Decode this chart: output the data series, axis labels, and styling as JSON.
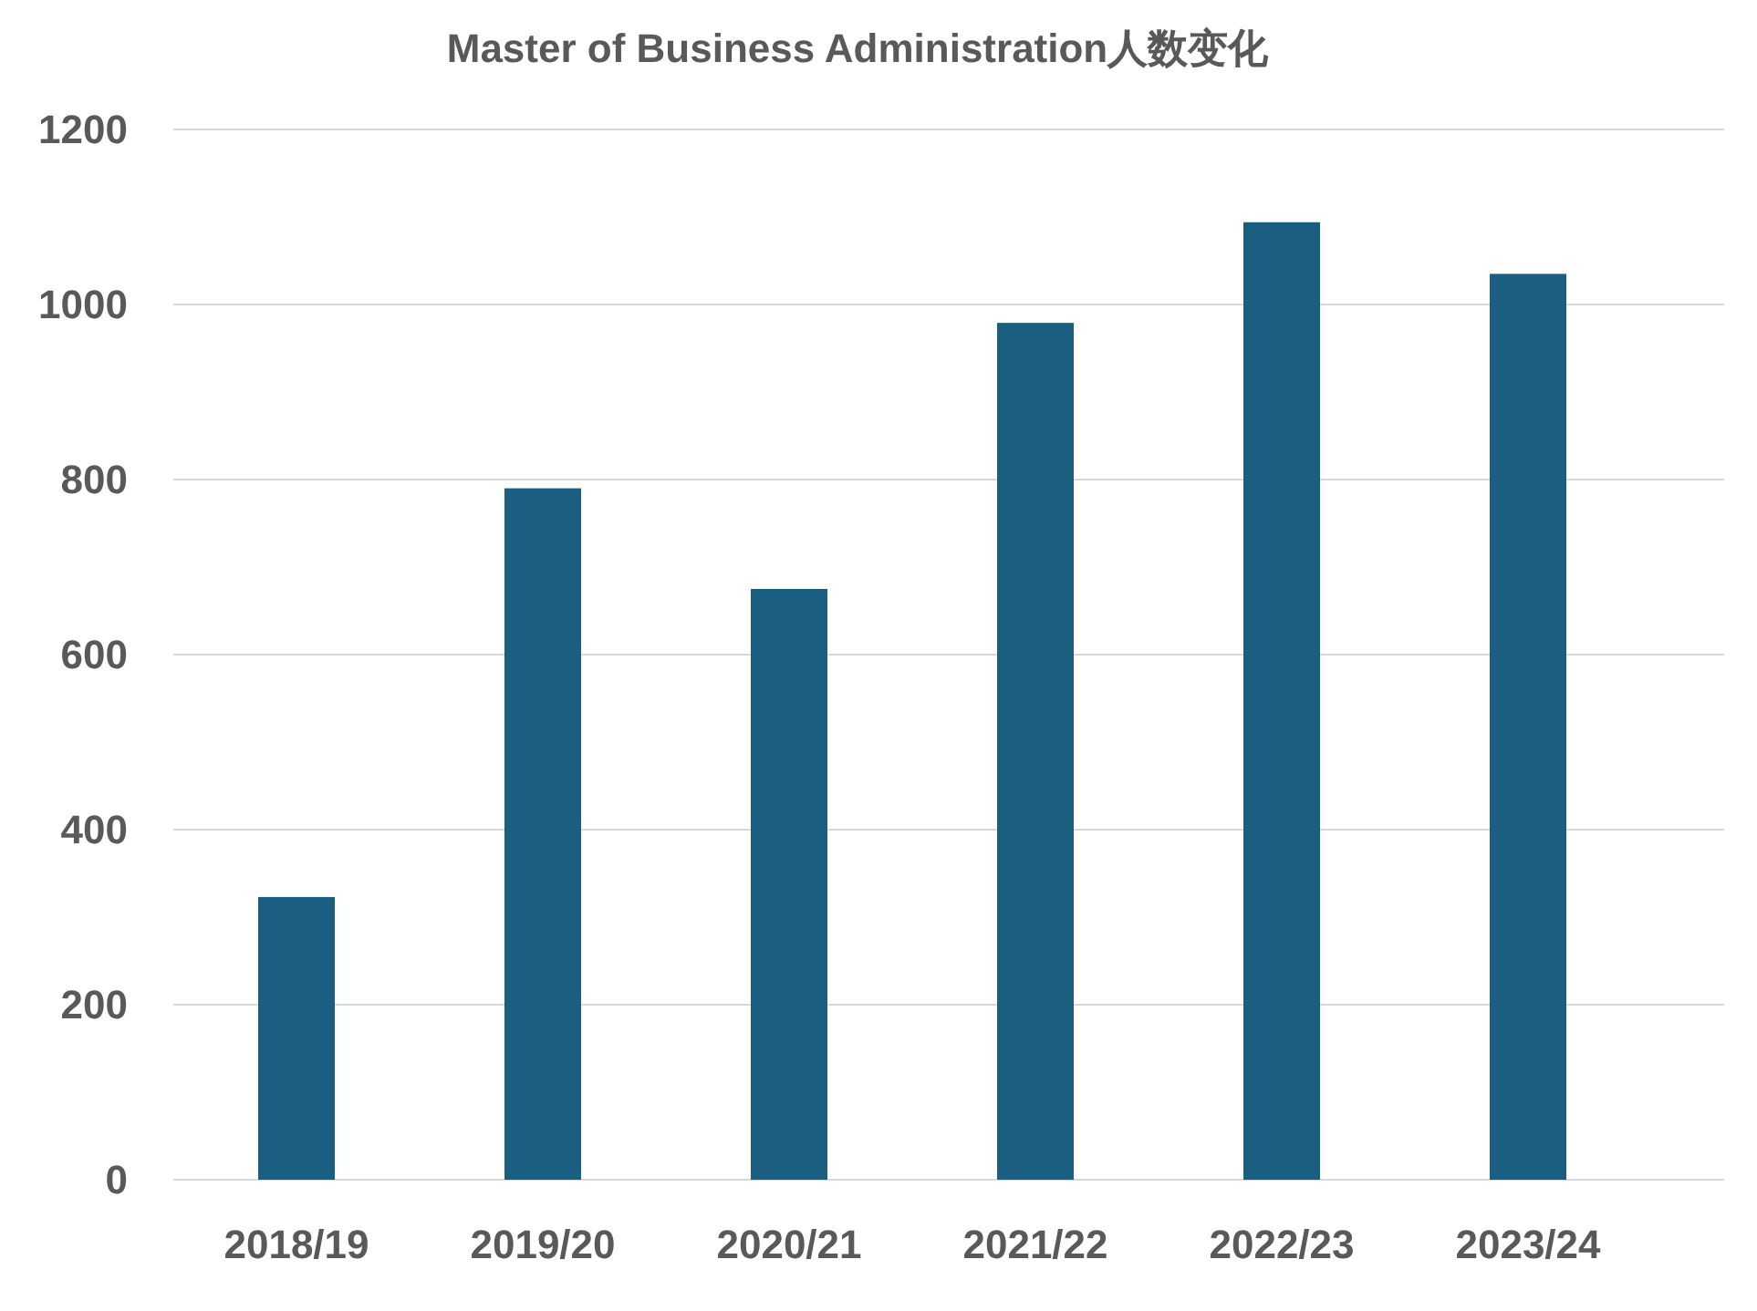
{
  "chart_data": {
    "type": "bar",
    "title": "Master of Business Administration人数变化",
    "categories": [
      "2018/19",
      "2019/20",
      "2020/21",
      "2021/22",
      "2022/23",
      "2023/24"
    ],
    "values": [
      323,
      790,
      675,
      979,
      1094,
      1035
    ],
    "color": "#1a5f80",
    "ylim": [
      0,
      1200
    ],
    "yticks": [
      0,
      200,
      400,
      600,
      800,
      1000,
      1200
    ],
    "grid": "y"
  }
}
